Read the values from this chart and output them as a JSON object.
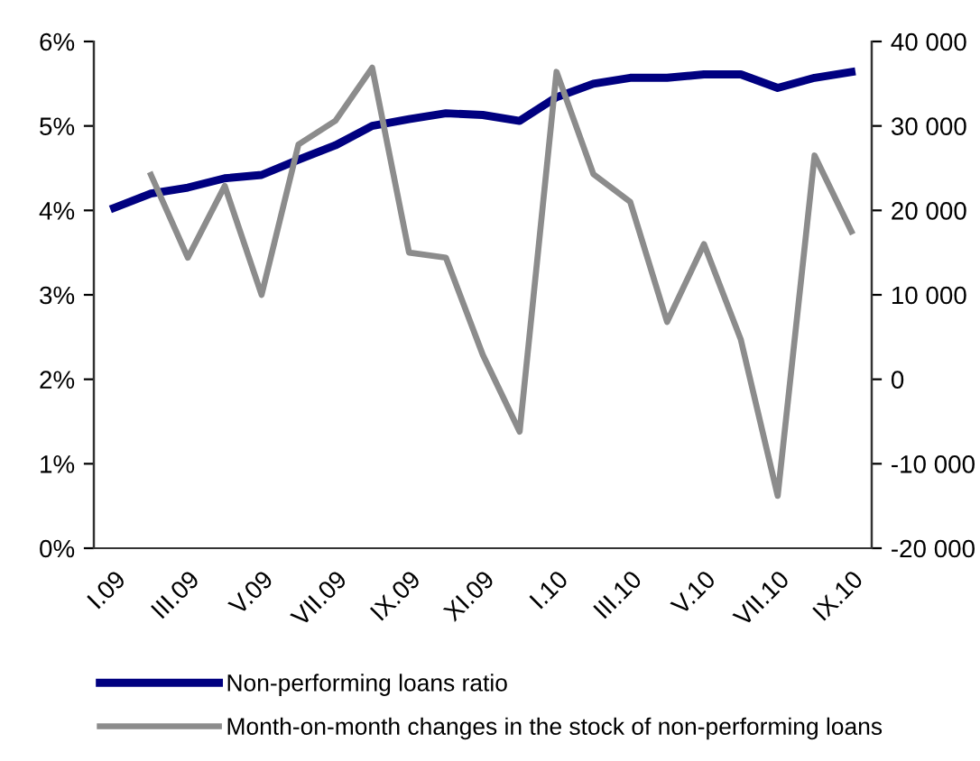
{
  "chart_data": {
    "type": "line",
    "categories": [
      "I.09",
      null,
      "III.09",
      null,
      "V.09",
      null,
      "VII.09",
      null,
      "IX.09",
      null,
      "XI.09",
      null,
      "I.10",
      null,
      "III.10",
      null,
      "V.10",
      null,
      "VII.10",
      null,
      "IX.10"
    ],
    "series": [
      {
        "name": "Non-performing loans ratio",
        "color": "#000080",
        "values": [
          4.03,
          4.2,
          4.27,
          4.38,
          4.42,
          4.6,
          4.77,
          5.0,
          5.08,
          5.15,
          5.13,
          5.06,
          5.34,
          5.5,
          5.57,
          5.57,
          5.61,
          5.61,
          5.45,
          5.57,
          5.64
        ]
      },
      {
        "name": "Month-on-month changes in the stock of non-performing loans",
        "color": "#8c8c8c",
        "axis": "y2",
        "values": [
          null,
          24200,
          14400,
          22900,
          10000,
          27800,
          30600,
          36900,
          15000,
          14400,
          2900,
          -6200,
          36400,
          24300,
          21000,
          6800,
          16000,
          4700,
          -13800,
          26500,
          17500
        ]
      }
    ],
    "ylim": [
      0,
      6
    ],
    "yticks": [
      {
        "value": 0,
        "label": "0%"
      },
      {
        "value": 1,
        "label": "1%"
      },
      {
        "value": 2,
        "label": "2%"
      },
      {
        "value": 3,
        "label": "3%"
      },
      {
        "value": 4,
        "label": "4%"
      },
      {
        "value": 5,
        "label": "5%"
      },
      {
        "value": 6,
        "label": "6%"
      }
    ],
    "y2lim": [
      -20000,
      40000
    ],
    "y2ticks": [
      {
        "value": -20000,
        "label": "-20 000"
      },
      {
        "value": -10000,
        "label": "-10 000"
      },
      0,
      {
        "value": 10000,
        "label": "10 000"
      },
      {
        "value": 20000,
        "label": "20 000"
      },
      {
        "value": 30000,
        "label": "30 000"
      },
      {
        "value": 40000,
        "label": "40 000"
      }
    ],
    "legend": "bottom",
    "grid": false,
    "marker": "none",
    "line_style": "solid"
  }
}
